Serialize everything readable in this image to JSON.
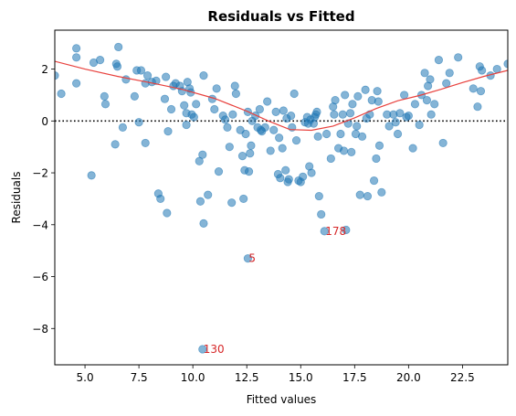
{
  "chart_data": {
    "type": "scatter",
    "title": "Residuals vs Fitted",
    "xlabel": "Fitted values",
    "ylabel": "Residuals",
    "xlim": [
      3.6,
      24.6
    ],
    "ylim": [
      -9.4,
      3.5
    ],
    "xticks": [
      5.0,
      7.5,
      10.0,
      12.5,
      15.0,
      17.5,
      20.0,
      22.5
    ],
    "xtick_labels": [
      "5.0",
      "7.5",
      "10.0",
      "12.5",
      "15.0",
      "17.5",
      "20.0",
      "22.5"
    ],
    "yticks": [
      2,
      0,
      -2,
      -4,
      -6,
      -8
    ],
    "ytick_labels": [
      "2",
      "0",
      "−2",
      "−4",
      "−6",
      "−8"
    ],
    "reference_line": {
      "y": 0,
      "style": "dotted",
      "color": "#000000"
    },
    "lowess": {
      "color": "#e8413d",
      "x": [
        3.6,
        5.0,
        6.5,
        8.0,
        9.5,
        11.0,
        12.5,
        13.5,
        14.5,
        15.5,
        16.5,
        17.5,
        18.5,
        19.5,
        20.5,
        21.5,
        22.5,
        23.5,
        24.6
      ],
      "y": [
        2.3,
        2.0,
        1.72,
        1.48,
        1.22,
        0.87,
        0.38,
        0.0,
        -0.33,
        -0.36,
        -0.2,
        0.12,
        0.48,
        0.78,
        0.98,
        1.22,
        1.48,
        1.72,
        1.95
      ]
    },
    "series": [
      {
        "color": "#1f77b4",
        "points": [
          [
            3.6,
            1.75
          ],
          [
            3.9,
            1.05
          ],
          [
            4.6,
            2.8
          ],
          [
            4.6,
            2.45
          ],
          [
            4.6,
            1.45
          ],
          [
            5.3,
            -2.1
          ],
          [
            5.4,
            2.25
          ],
          [
            5.7,
            2.35
          ],
          [
            5.9,
            0.95
          ],
          [
            5.95,
            0.65
          ],
          [
            6.45,
            2.2
          ],
          [
            6.5,
            2.1
          ],
          [
            6.55,
            2.85
          ],
          [
            6.4,
            -0.9
          ],
          [
            6.75,
            -0.25
          ],
          [
            6.9,
            1.6
          ],
          [
            7.3,
            0.95
          ],
          [
            7.4,
            1.95
          ],
          [
            7.6,
            1.95
          ],
          [
            7.5,
            -0.05
          ],
          [
            7.8,
            -0.85
          ],
          [
            7.9,
            1.75
          ],
          [
            7.8,
            1.45
          ],
          [
            8.1,
            1.5
          ],
          [
            8.3,
            1.55
          ],
          [
            8.4,
            -2.8
          ],
          [
            8.5,
            -3.0
          ],
          [
            8.8,
            -3.55
          ],
          [
            8.7,
            0.85
          ],
          [
            8.75,
            1.7
          ],
          [
            8.85,
            -0.4
          ],
          [
            9.0,
            0.45
          ],
          [
            9.1,
            1.35
          ],
          [
            9.2,
            1.45
          ],
          [
            9.4,
            1.35
          ],
          [
            9.5,
            1.15
          ],
          [
            9.6,
            0.6
          ],
          [
            9.7,
            0.3
          ],
          [
            9.7,
            -0.15
          ],
          [
            9.75,
            1.5
          ],
          [
            9.85,
            1.25
          ],
          [
            9.9,
            1.1
          ],
          [
            9.95,
            0.25
          ],
          [
            10.05,
            0.15
          ],
          [
            10.15,
            0.65
          ],
          [
            10.3,
            -1.55
          ],
          [
            10.35,
            -3.1
          ],
          [
            10.45,
            -1.3
          ],
          [
            10.5,
            1.75
          ],
          [
            10.5,
            -3.95
          ],
          [
            10.7,
            -2.85
          ],
          [
            10.9,
            0.85
          ],
          [
            11.0,
            0.45
          ],
          [
            11.1,
            1.25
          ],
          [
            11.2,
            -1.95
          ],
          [
            11.4,
            0.2
          ],
          [
            11.5,
            0.05
          ],
          [
            11.6,
            -0.25
          ],
          [
            11.7,
            -1.0
          ],
          [
            11.8,
            -3.15
          ],
          [
            11.85,
            0.25
          ],
          [
            11.95,
            1.35
          ],
          [
            12.0,
            1.05
          ],
          [
            12.2,
            -0.35
          ],
          [
            12.3,
            -1.35
          ],
          [
            12.35,
            -3.0
          ],
          [
            12.4,
            -1.9
          ],
          [
            12.45,
            -0.5
          ],
          [
            12.55,
            0.35
          ],
          [
            12.6,
            -1.95
          ],
          [
            12.65,
            -1.25
          ],
          [
            12.7,
            -0.95
          ],
          [
            12.75,
            0.0
          ],
          [
            12.9,
            0.2
          ],
          [
            13.0,
            -0.25
          ],
          [
            13.1,
            0.45
          ],
          [
            13.15,
            -0.35
          ],
          [
            13.2,
            -0.4
          ],
          [
            13.35,
            -0.25
          ],
          [
            13.45,
            0.75
          ],
          [
            13.6,
            -1.15
          ],
          [
            13.75,
            -0.35
          ],
          [
            13.85,
            0.35
          ],
          [
            13.95,
            -2.05
          ],
          [
            14.0,
            -0.65
          ],
          [
            14.05,
            -2.2
          ],
          [
            14.15,
            -1.05
          ],
          [
            14.2,
            0.4
          ],
          [
            14.3,
            -1.9
          ],
          [
            14.35,
            0.1
          ],
          [
            14.4,
            -2.35
          ],
          [
            14.45,
            -2.25
          ],
          [
            14.55,
            0.2
          ],
          [
            14.6,
            -0.25
          ],
          [
            14.7,
            1.05
          ],
          [
            14.8,
            -0.75
          ],
          [
            14.9,
            -2.3
          ],
          [
            15.0,
            -2.35
          ],
          [
            15.1,
            -2.15
          ],
          [
            15.2,
            -0.05
          ],
          [
            15.3,
            0.15
          ],
          [
            15.35,
            -0.1
          ],
          [
            15.4,
            -1.75
          ],
          [
            15.45,
            0.05
          ],
          [
            15.5,
            -2.0
          ],
          [
            15.6,
            -0.1
          ],
          [
            15.65,
            0.15
          ],
          [
            15.7,
            0.25
          ],
          [
            15.75,
            0.35
          ],
          [
            15.8,
            -0.6
          ],
          [
            15.85,
            -2.9
          ],
          [
            15.95,
            -3.6
          ],
          [
            16.1,
            -4.25
          ],
          [
            16.2,
            -0.5
          ],
          [
            16.4,
            -1.45
          ],
          [
            16.5,
            0.55
          ],
          [
            16.55,
            0.25
          ],
          [
            16.6,
            0.8
          ],
          [
            16.75,
            -1.05
          ],
          [
            16.85,
            -0.5
          ],
          [
            16.95,
            0.25
          ],
          [
            17.0,
            -1.15
          ],
          [
            17.05,
            1.0
          ],
          [
            17.1,
            -4.2
          ],
          [
            17.2,
            -0.1
          ],
          [
            17.3,
            0.3
          ],
          [
            17.35,
            -1.2
          ],
          [
            17.4,
            0.65
          ],
          [
            17.55,
            -0.5
          ],
          [
            17.6,
            -0.2
          ],
          [
            17.65,
            0.95
          ],
          [
            17.75,
            -2.85
          ],
          [
            17.85,
            -0.6
          ],
          [
            18.0,
            1.2
          ],
          [
            18.05,
            0.1
          ],
          [
            18.1,
            -2.9
          ],
          [
            18.2,
            0.25
          ],
          [
            18.3,
            0.8
          ],
          [
            18.4,
            -2.3
          ],
          [
            18.5,
            -1.45
          ],
          [
            18.55,
            1.15
          ],
          [
            18.6,
            0.75
          ],
          [
            18.65,
            -0.95
          ],
          [
            18.75,
            -2.75
          ],
          [
            19.0,
            0.25
          ],
          [
            19.1,
            -0.2
          ],
          [
            19.3,
            0.25
          ],
          [
            19.4,
            -0.05
          ],
          [
            19.5,
            -0.5
          ],
          [
            19.6,
            0.3
          ],
          [
            19.8,
            1.0
          ],
          [
            19.9,
            0.15
          ],
          [
            20.0,
            0.2
          ],
          [
            20.2,
            -1.05
          ],
          [
            20.3,
            0.65
          ],
          [
            20.5,
            -0.15
          ],
          [
            20.6,
            1.0
          ],
          [
            20.75,
            1.85
          ],
          [
            20.85,
            0.8
          ],
          [
            20.9,
            1.35
          ],
          [
            21.0,
            1.6
          ],
          [
            21.05,
            0.25
          ],
          [
            21.2,
            0.65
          ],
          [
            21.4,
            2.35
          ],
          [
            21.6,
            -0.85
          ],
          [
            21.75,
            1.45
          ],
          [
            21.9,
            1.85
          ],
          [
            22.3,
            2.45
          ],
          [
            23.0,
            1.25
          ],
          [
            23.2,
            0.55
          ],
          [
            23.3,
            2.1
          ],
          [
            23.35,
            1.15
          ],
          [
            23.4,
            1.95
          ],
          [
            23.8,
            1.75
          ],
          [
            24.1,
            2.0
          ],
          [
            24.6,
            2.2
          ]
        ]
      },
      {
        "color": "#1f77b4",
        "points": [
          [
            12.55,
            -5.3
          ],
          [
            10.45,
            -8.8
          ]
        ]
      }
    ],
    "annotations": [
      {
        "text": "130",
        "x": 10.45,
        "y": -8.8
      },
      {
        "text": "5",
        "x": 12.55,
        "y": -5.3
      },
      {
        "text": "178",
        "x": 16.1,
        "y": -4.25
      }
    ]
  }
}
